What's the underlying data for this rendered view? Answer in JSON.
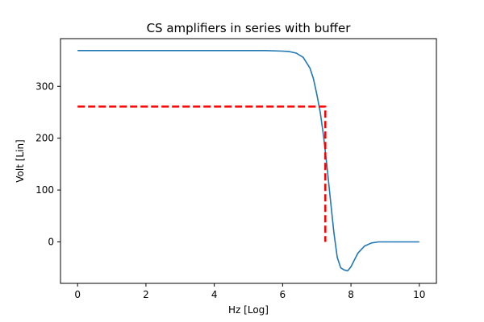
{
  "chart_data": {
    "type": "line",
    "title": "CS amplifiers in series with buffer",
    "xlabel": "Hz [Log]",
    "ylabel": "Volt [Lin]",
    "xlim": [
      -0.5,
      10.5
    ],
    "ylim": [
      -80,
      392
    ],
    "xticks": [
      0,
      2,
      4,
      6,
      8,
      10
    ],
    "yticks": [
      0,
      100,
      200,
      300
    ],
    "grid": false,
    "series": [
      {
        "color": "#1f77b4",
        "x": [
          0,
          1,
          2,
          3,
          4,
          5,
          5.5,
          6,
          6.2,
          6.4,
          6.6,
          6.8,
          6.9,
          7.0,
          7.1,
          7.2,
          7.3,
          7.4,
          7.5,
          7.6,
          7.7,
          7.8,
          7.9,
          8.0,
          8.1,
          8.2,
          8.4,
          8.6,
          8.8,
          9.0,
          9.5,
          10
        ],
        "values": [
          369,
          369,
          369,
          369,
          369,
          369,
          369,
          368,
          367,
          364,
          356,
          335,
          315,
          285,
          250,
          203,
          145,
          80,
          18,
          -30,
          -50,
          -54,
          -56,
          -48,
          -35,
          -22,
          -8,
          -2,
          0,
          0,
          0,
          0
        ]
      },
      {
        "color": "#ff0000",
        "style": "dashed",
        "x": [
          0,
          7.25,
          7.25
        ],
        "values": [
          261,
          261,
          0
        ]
      }
    ]
  }
}
